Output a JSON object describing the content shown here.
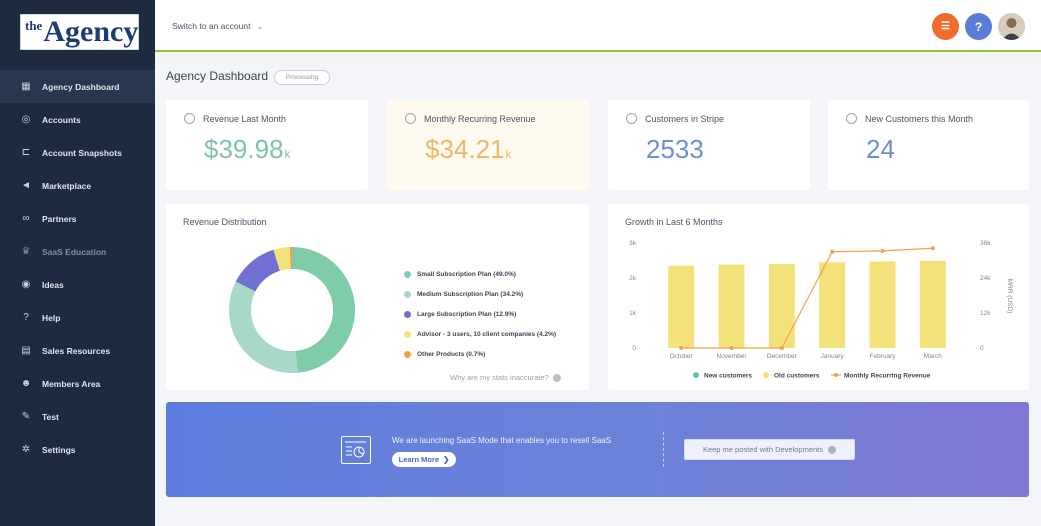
{
  "logo": {
    "the": "the",
    "agency": "Agency"
  },
  "header": {
    "switch_label": "Switch to an account"
  },
  "sidebar": {
    "items": [
      {
        "label": "Agency Dashboard",
        "icon": "grid-icon",
        "glyph": "▦",
        "active": true
      },
      {
        "label": "Accounts",
        "icon": "location-pin-icon",
        "glyph": "◎"
      },
      {
        "label": "Account Snapshots",
        "icon": "snapshot-icon",
        "glyph": "⊏"
      },
      {
        "label": "Marketplace",
        "icon": "megaphone-icon",
        "glyph": "◄"
      },
      {
        "label": "Partners",
        "icon": "handshake-icon",
        "glyph": "∞"
      },
      {
        "label": "SaaS Education",
        "icon": "education-icon",
        "glyph": "♛",
        "muted": true
      },
      {
        "label": "Ideas",
        "icon": "ideas-icon",
        "glyph": "◉"
      },
      {
        "label": "Help",
        "icon": "question-icon",
        "glyph": "?"
      },
      {
        "label": "Sales Resources",
        "icon": "document-icon",
        "glyph": "▤"
      },
      {
        "label": "Members Area",
        "icon": "members-icon",
        "glyph": "☻"
      },
      {
        "label": "Test",
        "icon": "wrench-icon",
        "glyph": "✎"
      },
      {
        "label": "Settings",
        "icon": "gear-icon",
        "glyph": "✲"
      }
    ]
  },
  "page": {
    "title": "Agency Dashboard",
    "badge": "Processing"
  },
  "stats": [
    {
      "title": "Revenue Last Month",
      "value": "$39.98",
      "unit": "k",
      "color": "#7dc6a0"
    },
    {
      "title": "Monthly Recurring Revenue",
      "value": "$34.21",
      "unit": "k",
      "color": "#f0b56a"
    },
    {
      "title": "Customers in Stripe",
      "value": "2533",
      "unit": "",
      "color": "#6d8fd1"
    },
    {
      "title": "New Customers this Month",
      "value": "24",
      "unit": "",
      "color": "#6d8fd1"
    }
  ],
  "chart_data": [
    {
      "type": "pie",
      "title": "Revenue Distribution",
      "categories": [
        "Small Subscription Plan",
        "Medium Subscription Plan",
        "Large Subscription Plan",
        "Advisor - 3 users, 10 client companies",
        "Other Products"
      ],
      "values": [
        49.0,
        34.2,
        12.9,
        4.2,
        0.7
      ],
      "legend_labels": [
        "Small Subscription Plan (49.0%)",
        "Medium Subscription Plan (34.2%)",
        "Large Subscription Plan (12.9%)",
        "Advisor - 3 users, 10 client companies (4.2%)",
        "Other Products (0.7%)"
      ],
      "colors": [
        "#7fcca8",
        "#a8d8c6",
        "#6f6fd4",
        "#f3e27a",
        "#f0a24a"
      ],
      "legend_placement": "right"
    },
    {
      "type": "bar",
      "title": "Growth in Last 6 Months",
      "categories": [
        "October",
        "November",
        "December",
        "January",
        "February",
        "March"
      ],
      "series": [
        {
          "name": "New customers",
          "values": [
            0,
            0,
            0,
            0,
            0,
            0
          ],
          "color": "#5fc3a3"
        },
        {
          "name": "Old customers",
          "values": [
            2350,
            2380,
            2400,
            2450,
            2470,
            2490
          ],
          "color": "#f3e27a"
        },
        {
          "name": "Monthly Recurring Revenue",
          "type": "line",
          "axis": "right",
          "values": [
            0,
            0,
            0,
            33000,
            33300,
            34200
          ],
          "color": "#f0a24a"
        }
      ],
      "y_left": {
        "ticks": [
          "0",
          "1k",
          "2k",
          "3k"
        ],
        "lim": [
          0,
          3000
        ]
      },
      "y_right": {
        "label": "MRR (USD)",
        "ticks": [
          "0",
          "12k",
          "24k",
          "36k"
        ],
        "lim": [
          0,
          36000
        ]
      },
      "legend_placement": "bottom",
      "grid": false
    }
  ],
  "panels": {
    "stats_link": "Why are my stats inaccurate?"
  },
  "banner": {
    "text": "We are launching SaaS Mode that enables you to resell SaaS",
    "learn_more": "Learn More",
    "learn_more_arrow": "❯",
    "keep_posted": "Keep me posted with Developments"
  }
}
